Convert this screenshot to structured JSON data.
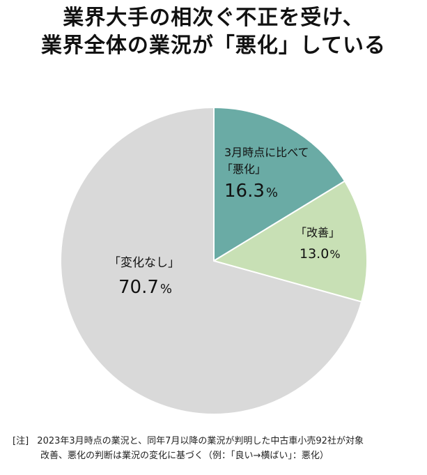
{
  "title": {
    "line1": "業界大手の相次ぐ不正を受け、",
    "line2": "業界全体の業況が「悪化」している"
  },
  "chart_data": {
    "type": "pie",
    "slices": [
      {
        "label_line1": "3月時点に比べて",
        "label_line2": "「悪化」",
        "number": "16.3",
        "unit": "%",
        "value": 16.3,
        "color": "#6aaba5"
      },
      {
        "label_line1": "「改善」",
        "label_line2": "",
        "number": "13.0",
        "unit": "%",
        "value": 13.0,
        "color": "#c8e0b5"
      },
      {
        "label_line1": "「変化なし」",
        "label_line2": "",
        "number": "70.7",
        "unit": "%",
        "value": 70.7,
        "color": "#d9d9d9"
      }
    ]
  },
  "note": {
    "prefix": "[注]",
    "line1": "2023年3月時点の業況と、同年7月以降の業況が判明した中古車小売92社が対象",
    "line2": "改善、悪化の判断は業況の変化に基づく（例：「良い→横ばい」：悪化）"
  }
}
